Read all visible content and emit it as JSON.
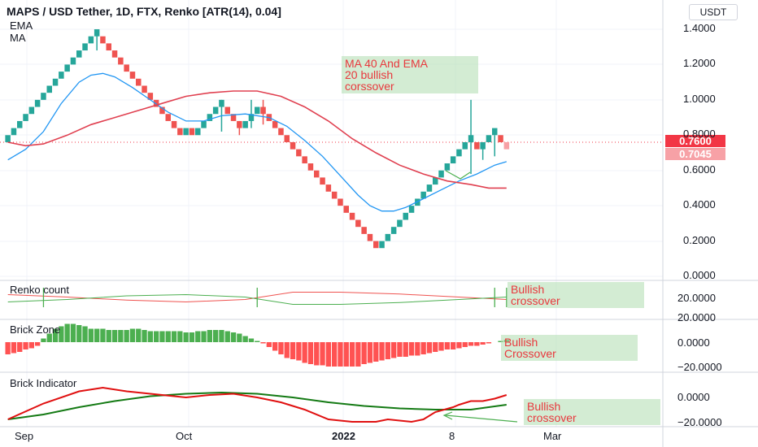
{
  "header": {
    "title": "MAPS / USD Tether, 1D, FTX, Renko [ATR(14), 0.04]",
    "indicator_1": "EMA",
    "indicator_2": "MA"
  },
  "currency_button": "USDT",
  "price_tags": {
    "close": "0.7600",
    "last": "0.7045"
  },
  "colors": {
    "up": "#26a69a",
    "down": "#ef5350",
    "ema": "#2196f3",
    "ma": "#e04050",
    "count_up": "#4caf50",
    "count_down": "#ef5350",
    "zone_up": "#4caf50",
    "zone_down": "#ff5252",
    "ind_red": "#e01010",
    "ind_green": "#147a14"
  },
  "annotations": {
    "main": [
      "MA 40 And EMA",
      "20 bullish",
      "corssover"
    ],
    "renko_count": [
      "Bullish",
      "crossover"
    ],
    "brick_zone": [
      "Bullish",
      "Crossover"
    ],
    "brick_indicator": [
      "Bullish",
      "crossover"
    ]
  },
  "x_axis": {
    "ticks": [
      "Sep",
      "Oct",
      "2022",
      "8",
      "Mar"
    ]
  },
  "chart_data": [
    {
      "name": "main",
      "type": "candlestick",
      "y_ticks": [
        "1.4000",
        "1.2000",
        "1.0000",
        "0.8000",
        "0.6000",
        "0.4000",
        "0.2000",
        "0.0000"
      ],
      "ylim": [
        0.0,
        1.45
      ],
      "brick_size": 0.04,
      "bricks": [
        {
          "bar": 0,
          "open": 0.76,
          "close": 0.8
        },
        {
          "bar": 1,
          "open": 0.8,
          "close": 0.84
        },
        {
          "bar": 2,
          "open": 0.84,
          "close": 0.88
        },
        {
          "bar": 3,
          "open": 0.88,
          "close": 0.92
        },
        {
          "bar": 4,
          "open": 0.92,
          "close": 0.96
        },
        {
          "bar": 5,
          "open": 0.96,
          "close": 1.0
        },
        {
          "bar": 6,
          "open": 1.0,
          "close": 1.04
        },
        {
          "bar": 7,
          "open": 1.04,
          "close": 1.08
        },
        {
          "bar": 8,
          "open": 1.08,
          "close": 1.12
        },
        {
          "bar": 9,
          "open": 1.12,
          "close": 1.16
        },
        {
          "bar": 10,
          "open": 1.16,
          "close": 1.2
        },
        {
          "bar": 11,
          "open": 1.2,
          "close": 1.24
        },
        {
          "bar": 12,
          "open": 1.24,
          "close": 1.28
        },
        {
          "bar": 13,
          "open": 1.28,
          "close": 1.32
        },
        {
          "bar": 14,
          "open": 1.32,
          "close": 1.36
        },
        {
          "bar": 15,
          "open": 1.36,
          "close": 1.4
        },
        {
          "bar": 16,
          "open": 1.36,
          "close": 1.32
        },
        {
          "bar": 17,
          "open": 1.32,
          "close": 1.28
        },
        {
          "bar": 18,
          "open": 1.28,
          "close": 1.24
        },
        {
          "bar": 19,
          "open": 1.24,
          "close": 1.2
        },
        {
          "bar": 20,
          "open": 1.2,
          "close": 1.16
        },
        {
          "bar": 21,
          "open": 1.16,
          "close": 1.12
        },
        {
          "bar": 22,
          "open": 1.12,
          "close": 1.08
        },
        {
          "bar": 23,
          "open": 1.08,
          "close": 1.04
        },
        {
          "bar": 24,
          "open": 1.04,
          "close": 1.0
        },
        {
          "bar": 25,
          "open": 1.0,
          "close": 0.96
        },
        {
          "bar": 26,
          "open": 0.96,
          "close": 0.92
        },
        {
          "bar": 27,
          "open": 0.92,
          "close": 0.88
        },
        {
          "bar": 28,
          "open": 0.88,
          "close": 0.84
        },
        {
          "bar": 29,
          "open": 0.84,
          "close": 0.8
        },
        {
          "bar": 30,
          "open": 0.8,
          "close": 0.84
        },
        {
          "bar": 31,
          "open": 0.84,
          "close": 0.8
        },
        {
          "bar": 32,
          "open": 0.8,
          "close": 0.84
        },
        {
          "bar": 33,
          "open": 0.84,
          "close": 0.88
        },
        {
          "bar": 34,
          "open": 0.88,
          "close": 0.92
        },
        {
          "bar": 35,
          "open": 0.92,
          "close": 0.96
        },
        {
          "bar": 36,
          "open": 0.96,
          "close": 1.0
        },
        {
          "bar": 37,
          "open": 0.96,
          "close": 0.92
        },
        {
          "bar": 38,
          "open": 0.92,
          "close": 0.88
        },
        {
          "bar": 39,
          "open": 0.88,
          "close": 0.84
        },
        {
          "bar": 40,
          "open": 0.84,
          "close": 0.88
        },
        {
          "bar": 41,
          "open": 0.88,
          "close": 0.92
        },
        {
          "bar": 42,
          "open": 0.92,
          "close": 0.96
        },
        {
          "bar": 43,
          "open": 0.96,
          "close": 0.92
        },
        {
          "bar": 44,
          "open": 0.92,
          "close": 0.88
        },
        {
          "bar": 45,
          "open": 0.88,
          "close": 0.84
        },
        {
          "bar": 46,
          "open": 0.84,
          "close": 0.8
        },
        {
          "bar": 47,
          "open": 0.8,
          "close": 0.76
        },
        {
          "bar": 48,
          "open": 0.76,
          "close": 0.72
        },
        {
          "bar": 49,
          "open": 0.72,
          "close": 0.68
        },
        {
          "bar": 50,
          "open": 0.68,
          "close": 0.64
        },
        {
          "bar": 51,
          "open": 0.64,
          "close": 0.6
        },
        {
          "bar": 52,
          "open": 0.6,
          "close": 0.56
        },
        {
          "bar": 53,
          "open": 0.56,
          "close": 0.52
        },
        {
          "bar": 54,
          "open": 0.52,
          "close": 0.48
        },
        {
          "bar": 55,
          "open": 0.48,
          "close": 0.44
        },
        {
          "bar": 56,
          "open": 0.44,
          "close": 0.4
        },
        {
          "bar": 57,
          "open": 0.4,
          "close": 0.36
        },
        {
          "bar": 58,
          "open": 0.36,
          "close": 0.32
        },
        {
          "bar": 59,
          "open": 0.32,
          "close": 0.28
        },
        {
          "bar": 60,
          "open": 0.28,
          "close": 0.24
        },
        {
          "bar": 61,
          "open": 0.24,
          "close": 0.2
        },
        {
          "bar": 62,
          "open": 0.2,
          "close": 0.16
        },
        {
          "bar": 63,
          "open": 0.16,
          "close": 0.2
        },
        {
          "bar": 64,
          "open": 0.2,
          "close": 0.24
        },
        {
          "bar": 65,
          "open": 0.24,
          "close": 0.28
        },
        {
          "bar": 66,
          "open": 0.28,
          "close": 0.32
        },
        {
          "bar": 67,
          "open": 0.32,
          "close": 0.36
        },
        {
          "bar": 68,
          "open": 0.36,
          "close": 0.4
        },
        {
          "bar": 69,
          "open": 0.4,
          "close": 0.44
        },
        {
          "bar": 70,
          "open": 0.44,
          "close": 0.48
        },
        {
          "bar": 71,
          "open": 0.48,
          "close": 0.52
        },
        {
          "bar": 72,
          "open": 0.52,
          "close": 0.56
        },
        {
          "bar": 73,
          "open": 0.56,
          "close": 0.6
        },
        {
          "bar": 74,
          "open": 0.6,
          "close": 0.64
        },
        {
          "bar": 75,
          "open": 0.64,
          "close": 0.68
        },
        {
          "bar": 76,
          "open": 0.68,
          "close": 0.72
        },
        {
          "bar": 77,
          "open": 0.72,
          "close": 0.76
        },
        {
          "bar": 78,
          "open": 0.76,
          "close": 0.8
        },
        {
          "bar": 79,
          "open": 0.76,
          "close": 0.72
        },
        {
          "bar": 80,
          "open": 0.72,
          "close": 0.76
        },
        {
          "bar": 81,
          "open": 0.76,
          "close": 0.8
        },
        {
          "bar": 82,
          "open": 0.8,
          "close": 0.84
        },
        {
          "bar": 83,
          "open": 0.8,
          "close": 0.76
        },
        {
          "bar": 84,
          "open": 0.76,
          "close": 0.72,
          "projected": true
        }
      ],
      "wicks": [
        {
          "bar": 15,
          "low": 1.28,
          "high": 1.4
        },
        {
          "bar": 36,
          "low": 0.82,
          "high": 1.0
        },
        {
          "bar": 39,
          "low": 0.8,
          "high": 0.88
        },
        {
          "bar": 41,
          "low": 0.84,
          "high": 1.0
        },
        {
          "bar": 43,
          "low": 0.86,
          "high": 1.0
        },
        {
          "bar": 78,
          "low": 0.58,
          "high": 1.0
        },
        {
          "bar": 80,
          "low": 0.66,
          "high": 0.76
        },
        {
          "bar": 82,
          "low": 0.68,
          "high": 0.8
        }
      ],
      "ema_20": [
        [
          0,
          0.66
        ],
        [
          3,
          0.72
        ],
        [
          6,
          0.82
        ],
        [
          9,
          0.98
        ],
        [
          12,
          1.1
        ],
        [
          14,
          1.14
        ],
        [
          16,
          1.15
        ],
        [
          18,
          1.13
        ],
        [
          21,
          1.07
        ],
        [
          24,
          1.0
        ],
        [
          27,
          0.93
        ],
        [
          30,
          0.88
        ],
        [
          33,
          0.88
        ],
        [
          36,
          0.91
        ],
        [
          40,
          0.92
        ],
        [
          44,
          0.9
        ],
        [
          47,
          0.85
        ],
        [
          50,
          0.77
        ],
        [
          53,
          0.68
        ],
        [
          56,
          0.57
        ],
        [
          59,
          0.46
        ],
        [
          61,
          0.4
        ],
        [
          63,
          0.37
        ],
        [
          65,
          0.37
        ],
        [
          67,
          0.39
        ],
        [
          70,
          0.44
        ],
        [
          73,
          0.49
        ],
        [
          76,
          0.54
        ],
        [
          79,
          0.58
        ],
        [
          82,
          0.63
        ],
        [
          84,
          0.65
        ]
      ],
      "ma_40": [
        [
          0,
          0.76
        ],
        [
          3,
          0.74
        ],
        [
          6,
          0.75
        ],
        [
          10,
          0.8
        ],
        [
          14,
          0.86
        ],
        [
          18,
          0.9
        ],
        [
          22,
          0.94
        ],
        [
          26,
          0.98
        ],
        [
          30,
          1.02
        ],
        [
          34,
          1.04
        ],
        [
          38,
          1.05
        ],
        [
          42,
          1.05
        ],
        [
          46,
          1.02
        ],
        [
          50,
          0.96
        ],
        [
          54,
          0.88
        ],
        [
          58,
          0.78
        ],
        [
          62,
          0.7
        ],
        [
          66,
          0.63
        ],
        [
          70,
          0.58
        ],
        [
          74,
          0.54
        ],
        [
          78,
          0.52
        ],
        [
          81,
          0.5
        ],
        [
          84,
          0.5
        ]
      ],
      "close_line": 0.76
    },
    {
      "name": "Renko count",
      "type": "line",
      "y_ticks": [
        "20.0000"
      ],
      "crossover_bars": [
        6,
        42,
        82,
        84
      ],
      "series": [
        {
          "color": "red",
          "values": [
            [
              0,
              26
            ],
            [
              10,
              22
            ],
            [
              20,
              17
            ],
            [
              30,
              14
            ],
            [
              40,
              18
            ],
            [
              48,
              30
            ],
            [
              56,
              30
            ],
            [
              66,
              27
            ],
            [
              76,
              22
            ],
            [
              84,
              18
            ]
          ]
        },
        {
          "color": "green",
          "values": [
            [
              0,
              14
            ],
            [
              10,
              18
            ],
            [
              20,
              24
            ],
            [
              30,
              26
            ],
            [
              40,
              22
            ],
            [
              48,
              10
            ],
            [
              56,
              10
            ],
            [
              66,
              13
            ],
            [
              76,
              18
            ],
            [
              84,
              22
            ]
          ]
        }
      ]
    },
    {
      "name": "Brick Zone",
      "type": "bar",
      "y_ticks": [
        "20.0000",
        "0.0000",
        "−20.0000"
      ],
      "values": [
        -10,
        -9,
        -8,
        -6,
        -5,
        -3,
        3,
        7,
        11,
        13,
        15,
        15,
        14,
        13,
        11,
        11,
        11,
        10,
        10,
        10,
        10,
        11,
        11,
        10,
        9,
        9,
        9,
        9,
        9,
        9,
        8,
        8,
        9,
        9,
        10,
        10,
        10,
        9,
        8,
        7,
        5,
        3,
        1,
        -1,
        -4,
        -7,
        -10,
        -13,
        -14,
        -15,
        -17,
        -18,
        -19,
        -19,
        -20,
        -20,
        -20,
        -20,
        -20,
        -20,
        -18,
        -17,
        -16,
        -15,
        -14,
        -13,
        -12,
        -12,
        -11,
        -11,
        -10,
        -9,
        -8,
        -7,
        -6,
        -6,
        -5,
        -4,
        -3,
        -3,
        -2,
        -1,
        0,
        1,
        2
      ]
    },
    {
      "name": "Brick Indicator",
      "type": "line",
      "y_ticks": [
        "0.0000",
        "−20.0000"
      ],
      "series": [
        {
          "color": "red",
          "values": [
            [
              0,
              -18
            ],
            [
              6,
              -5
            ],
            [
              12,
              5
            ],
            [
              16,
              8
            ],
            [
              20,
              5
            ],
            [
              26,
              2
            ],
            [
              30,
              0
            ],
            [
              34,
              2
            ],
            [
              38,
              3
            ],
            [
              42,
              0
            ],
            [
              46,
              -4
            ],
            [
              50,
              -10
            ],
            [
              54,
              -18
            ],
            [
              58,
              -20
            ],
            [
              62,
              -20
            ],
            [
              64,
              -18
            ],
            [
              68,
              -20
            ],
            [
              70,
              -18
            ],
            [
              72,
              -12
            ],
            [
              75,
              -8
            ],
            [
              76,
              -6
            ],
            [
              78,
              -3
            ],
            [
              80,
              -3
            ],
            [
              82,
              -1
            ],
            [
              84,
              2
            ]
          ]
        },
        {
          "color": "green",
          "values": [
            [
              0,
              -18
            ],
            [
              6,
              -14
            ],
            [
              12,
              -8
            ],
            [
              18,
              -3
            ],
            [
              24,
              1
            ],
            [
              30,
              3
            ],
            [
              36,
              4
            ],
            [
              42,
              3
            ],
            [
              48,
              0
            ],
            [
              54,
              -4
            ],
            [
              60,
              -7
            ],
            [
              66,
              -9
            ],
            [
              72,
              -10
            ],
            [
              78,
              -10
            ],
            [
              84,
              -6
            ]
          ]
        }
      ]
    }
  ]
}
